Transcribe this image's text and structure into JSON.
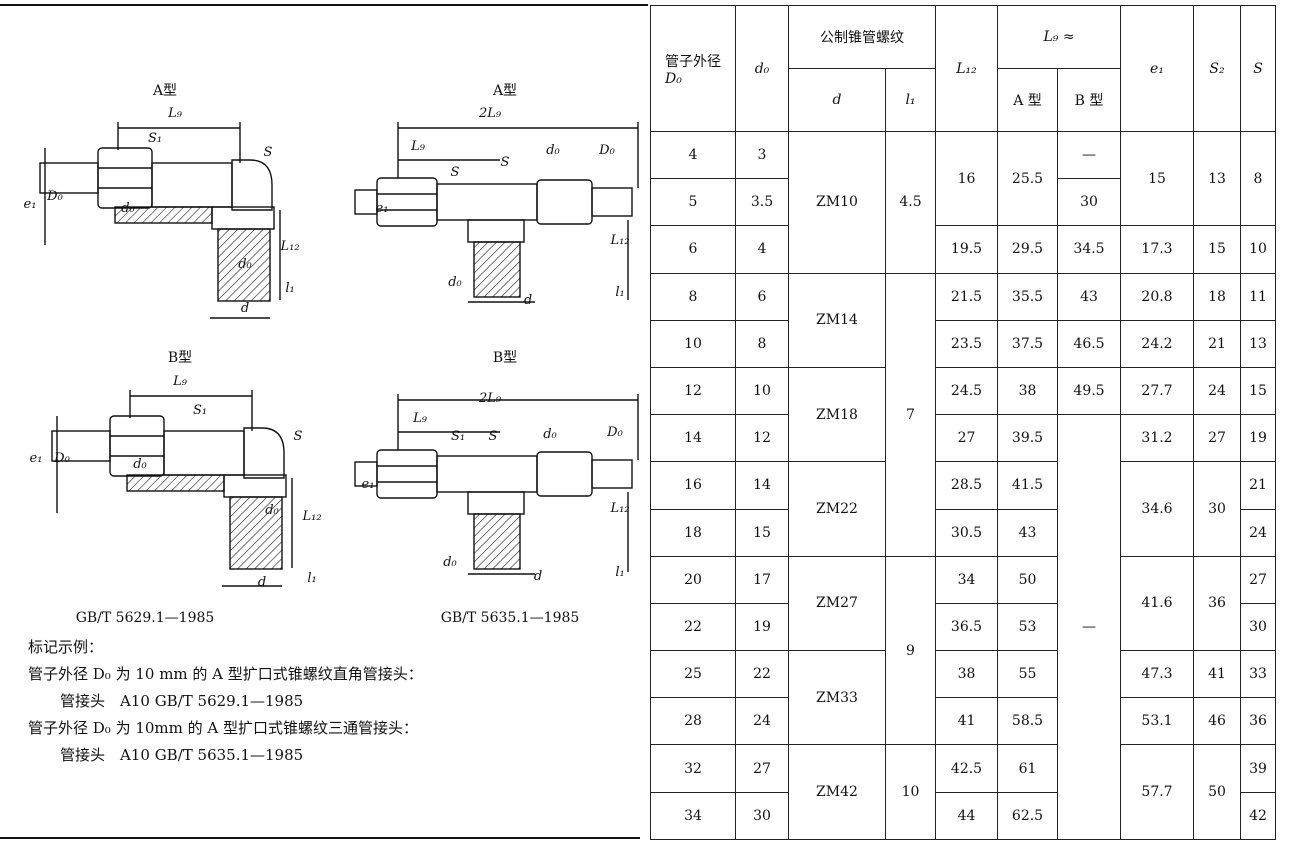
{
  "figures": [
    {
      "title": "A型",
      "labels": [
        "L₉",
        "S₁",
        "S",
        "e₁",
        "D₀",
        "d₀",
        "d₀",
        "L₁₂",
        "l₁",
        "d"
      ]
    },
    {
      "title": "A型",
      "labels": [
        "2L₉",
        "L₉",
        "S",
        "S",
        "d₀",
        "D₀",
        "e₁",
        "L₁₂",
        "d₀",
        "d",
        "l₁"
      ]
    },
    {
      "title": "B型",
      "labels": [
        "L₉",
        "S₁",
        "S",
        "e₁",
        "D₀",
        "d₀",
        "d₀",
        "L₁₂",
        "d",
        "l₁"
      ]
    },
    {
      "title": "B型",
      "labels": [
        "2L₉",
        "L₉",
        "S₁",
        "S",
        "d₀",
        "D₀",
        "e₁",
        "L₁₂",
        "d₀",
        "d",
        "l₁"
      ]
    }
  ],
  "standards": [
    "GB/T 5629.1—1985",
    "GB/T 5635.1—1985"
  ],
  "notes": [
    "标记示例：",
    "管子外径 D₀ 为 10 mm 的 A 型扩口式锥螺纹直角管接头：",
    "管接头　A10 GB/T 5629.1—1985",
    "管子外径 D₀ 为 10mm 的 A 型扩口式锥螺纹三通管接头：",
    "管接头　A10 GB/T 5635.1—1985"
  ],
  "table": {
    "header": {
      "outer_diameter": "管子外径",
      "outer_symbol": "D₀",
      "d0": "d₀",
      "thread": "公制锥管螺纹",
      "d": "d",
      "l1": "l₁",
      "L12": "L₁₂",
      "Lg": "L₉ ≈",
      "Lg_a": "A 型",
      "Lg_b": "B 型",
      "e1": "e₁",
      "S2": "S₂",
      "S": "S"
    },
    "rows": [
      [
        4,
        3,
        "ZM10",
        4.5,
        16,
        25.5,
        "—",
        15,
        13,
        8
      ],
      [
        5,
        3.5,
        null,
        null,
        null,
        null,
        30,
        null,
        null,
        null
      ],
      [
        6,
        4,
        null,
        null,
        19.5,
        29.5,
        34.5,
        17.3,
        15,
        10
      ],
      [
        8,
        6,
        "ZM14",
        7,
        21.5,
        35.5,
        43,
        20.8,
        18,
        11
      ],
      [
        10,
        8,
        null,
        null,
        23.5,
        37.5,
        46.5,
        24.2,
        21,
        13
      ],
      [
        12,
        10,
        "ZM18",
        null,
        24.5,
        38,
        49.5,
        27.7,
        24,
        15
      ],
      [
        14,
        12,
        null,
        null,
        27,
        39.5,
        "—",
        31.2,
        27,
        19
      ],
      [
        16,
        14,
        "ZM22",
        null,
        28.5,
        41.5,
        null,
        34.6,
        30,
        21
      ],
      [
        18,
        15,
        null,
        null,
        30.5,
        43,
        null,
        null,
        null,
        24
      ],
      [
        20,
        17,
        "ZM27",
        9,
        34,
        50,
        null,
        41.6,
        36,
        27
      ],
      [
        22,
        19,
        null,
        null,
        36.5,
        53,
        null,
        null,
        null,
        30
      ],
      [
        25,
        22,
        "ZM33",
        null,
        38,
        55,
        null,
        47.3,
        41,
        33
      ],
      [
        28,
        24,
        null,
        null,
        41,
        58.5,
        null,
        53.1,
        46,
        36
      ],
      [
        32,
        27,
        "ZM42",
        10,
        42.5,
        61,
        null,
        57.7,
        50,
        39
      ],
      [
        34,
        30,
        null,
        null,
        44,
        62.5,
        null,
        null,
        null,
        42
      ]
    ]
  }
}
